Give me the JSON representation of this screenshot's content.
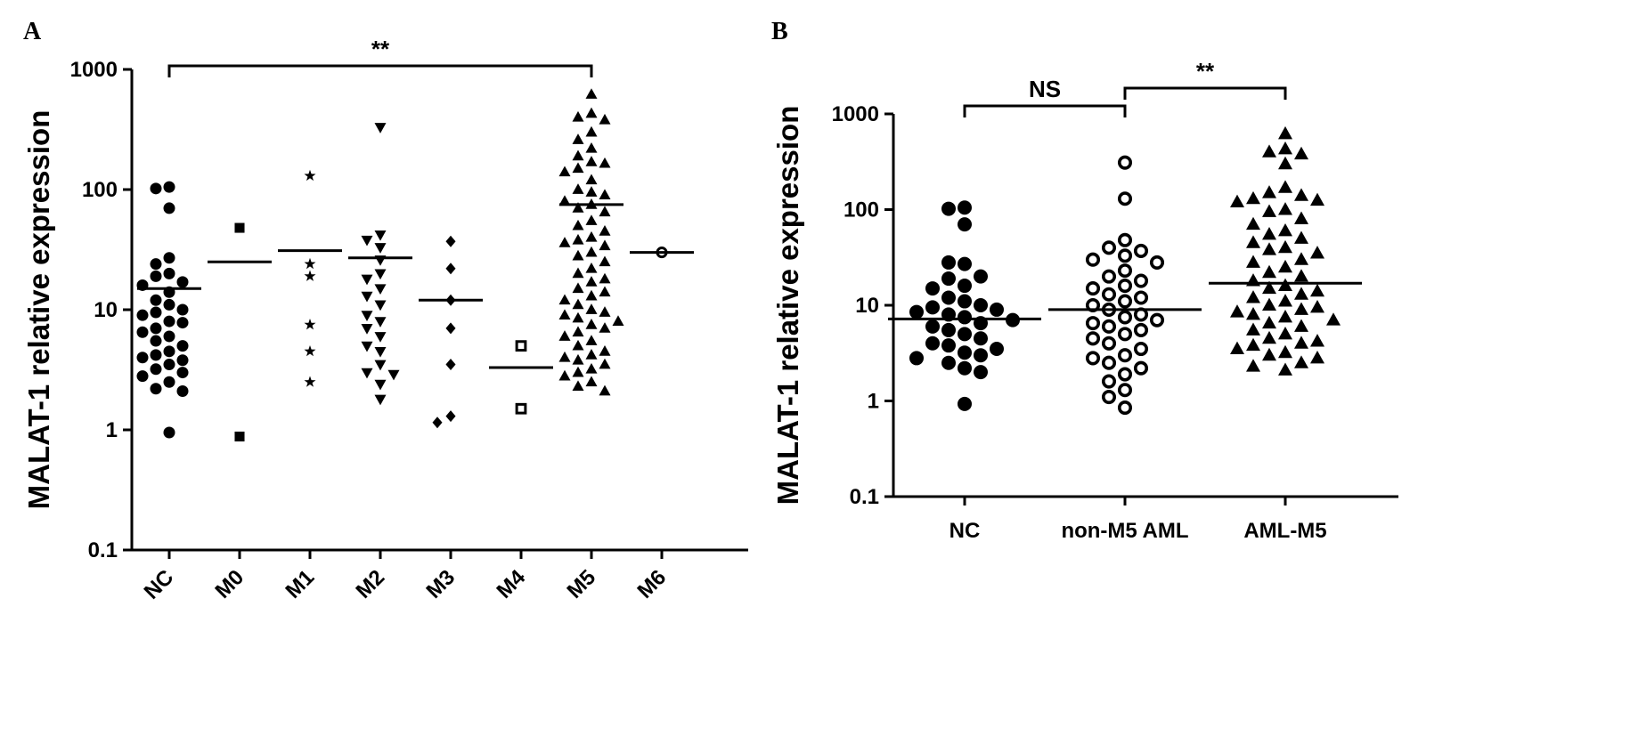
{
  "panels": {
    "a": {
      "letter": "A"
    },
    "b": {
      "letter": "B"
    }
  },
  "chart_data": [
    {
      "type": "scatter",
      "ylabel": "MALAT-1 relative expression",
      "ylim": [
        0.1,
        1000
      ],
      "yscale": "log",
      "yticks": [
        "0.1",
        "1",
        "10",
        "100",
        "1000"
      ],
      "categories": [
        "NC",
        "M0",
        "M1",
        "M2",
        "M3",
        "M4",
        "M5",
        "M6"
      ],
      "markers": [
        "circle",
        "square",
        "star",
        "triangle-down",
        "diamond",
        "open-square",
        "triangle-up",
        "open-circle"
      ],
      "series": [
        {
          "category": "NC",
          "median": 15,
          "values": [
            105,
            102,
            70,
            27,
            24,
            20,
            19,
            17,
            16,
            14,
            12,
            11,
            10,
            9.5,
            9,
            8,
            7.8,
            7,
            6.5,
            6,
            5.5,
            5,
            4.5,
            4.2,
            4,
            3.8,
            3.5,
            3.2,
            3,
            2.8,
            2.5,
            2.2,
            2.1,
            0.95
          ]
        },
        {
          "category": "M0",
          "median": 25,
          "values": [
            48,
            0.88
          ]
        },
        {
          "category": "M1",
          "median": 31,
          "values": [
            130,
            24,
            19,
            7.5,
            4.5,
            2.5
          ]
        },
        {
          "category": "M2",
          "median": 27,
          "values": [
            330,
            42,
            38,
            33,
            26,
            20,
            18,
            15,
            13,
            11,
            9,
            8,
            7,
            6,
            5,
            4.5,
            3.5,
            3,
            2.9,
            2.4,
            1.8
          ]
        },
        {
          "category": "M3",
          "median": 12,
          "values": [
            37,
            22,
            12,
            7,
            3.5,
            1.3,
            1.15
          ]
        },
        {
          "category": "M4",
          "median": 3.3,
          "values": [
            5,
            1.5
          ]
        },
        {
          "category": "M5",
          "median": 75,
          "values": [
            620,
            430,
            400,
            380,
            300,
            260,
            220,
            190,
            170,
            165,
            150,
            140,
            120,
            100,
            95,
            90,
            80,
            75,
            70,
            65,
            55,
            50,
            45,
            40,
            38,
            36,
            34,
            30,
            28,
            25,
            22,
            20,
            18,
            17,
            15,
            14,
            13,
            12,
            11,
            10,
            9.5,
            9,
            8.5,
            8,
            7.5,
            7,
            6.5,
            6,
            5.5,
            5,
            4.5,
            4.2,
            4,
            3.8,
            3.5,
            3.2,
            3,
            2.8,
            2.5,
            2.3,
            2.1
          ]
        },
        {
          "category": "M6",
          "median": 30,
          "values": [
            30
          ]
        }
      ],
      "annotations": [
        {
          "from": "NC",
          "to": "M5",
          "label": "**"
        }
      ]
    },
    {
      "type": "scatter",
      "ylabel": "MALAT-1 relative expression",
      "ylim": [
        0.1,
        1000
      ],
      "yscale": "log",
      "yticks": [
        "0.1",
        "1",
        "10",
        "100",
        "1000"
      ],
      "categories": [
        "NC",
        "non-M5 AML",
        "AML-M5"
      ],
      "markers": [
        "circle",
        "open-circle",
        "triangle-up"
      ],
      "series": [
        {
          "category": "NC",
          "median": 7.2,
          "values": [
            105,
            102,
            70,
            27,
            28,
            20,
            19,
            16,
            15,
            12,
            11,
            10,
            9.5,
            9,
            8.5,
            8,
            7.5,
            7,
            6.5,
            6,
            5.5,
            5,
            4.5,
            4,
            3.8,
            3.5,
            3.2,
            3,
            2.8,
            2.5,
            2.2,
            2,
            0.93
          ]
        },
        {
          "category": "non-M5 AML",
          "median": 9,
          "values": [
            310,
            130,
            48,
            40,
            37,
            33,
            30,
            28,
            23,
            20,
            18,
            16,
            15,
            13,
            12,
            11,
            10,
            9,
            8,
            7.5,
            7,
            6.5,
            6,
            5.5,
            5,
            4.5,
            4,
            3.5,
            3,
            2.8,
            2.5,
            2.2,
            1.9,
            1.6,
            1.3,
            1.1,
            0.85
          ]
        },
        {
          "category": "AML-M5",
          "median": 17,
          "values": [
            620,
            430,
            400,
            380,
            300,
            170,
            150,
            140,
            130,
            125,
            120,
            100,
            95,
            80,
            70,
            60,
            55,
            50,
            45,
            40,
            38,
            35,
            30,
            28,
            25,
            22,
            20,
            18,
            16,
            15,
            14,
            13,
            12,
            11,
            10,
            9.5,
            9,
            8.5,
            8,
            7.5,
            7,
            6.5,
            6,
            5.5,
            5,
            4.5,
            4.2,
            4,
            3.8,
            3.5,
            3.2,
            3,
            2.8,
            2.5,
            2.3,
            2.1
          ]
        }
      ],
      "annotations": [
        {
          "from": "NC",
          "to": "non-M5 AML",
          "label": "NS"
        },
        {
          "from": "non-M5 AML",
          "to": "AML-M5",
          "label": "**"
        }
      ]
    }
  ]
}
